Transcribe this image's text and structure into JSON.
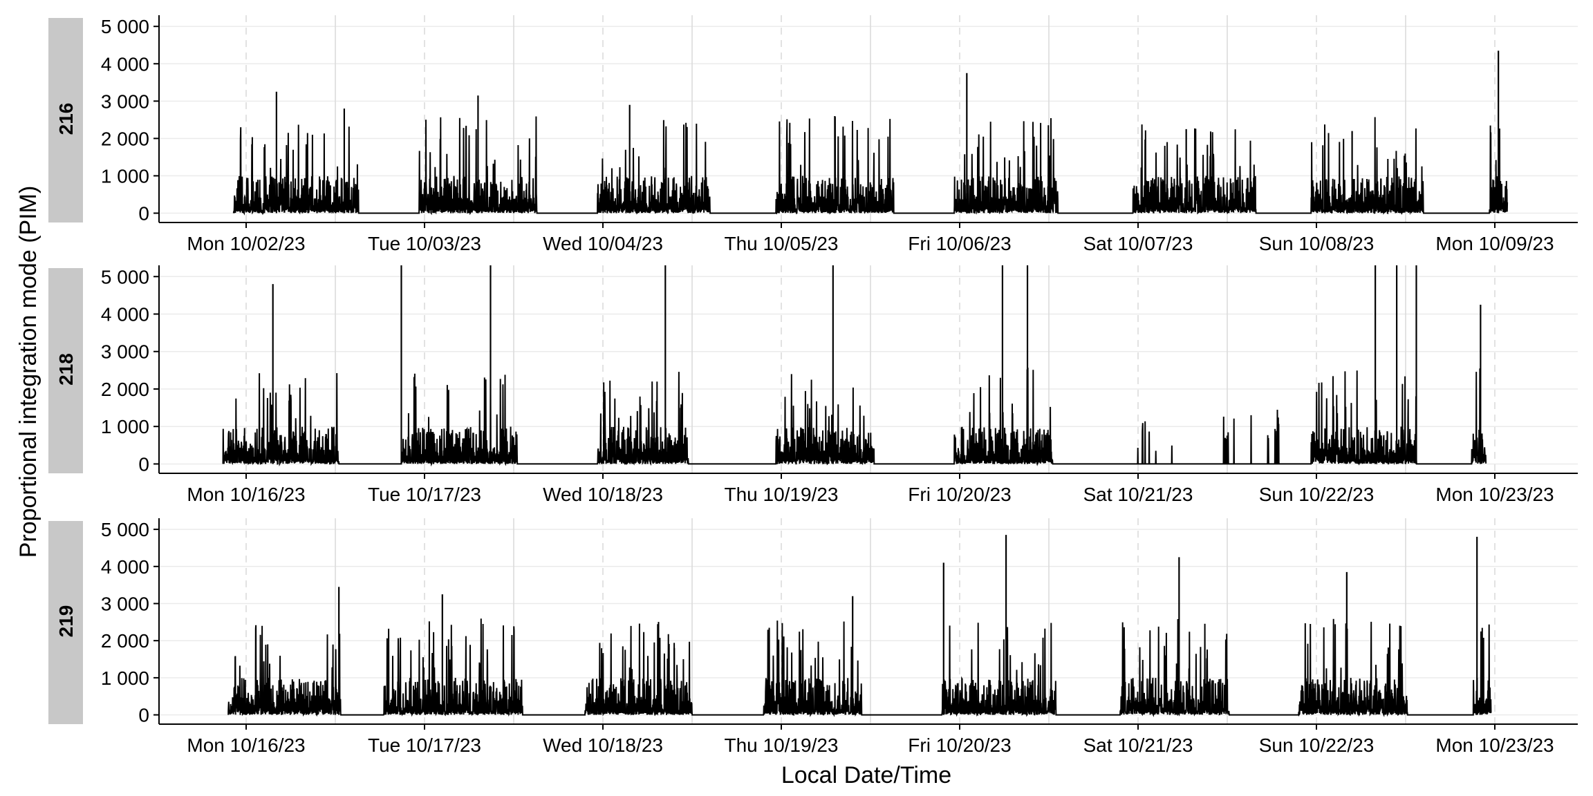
{
  "chart_data": {
    "type": "line",
    "ylabel": "Proportional integration mode (PIM)",
    "xlabel": "Local Date/Time",
    "ylim": [
      -250,
      5300
    ],
    "yticks": [
      0,
      1000,
      2000,
      3000,
      4000,
      5000
    ],
    "ytick_labels": [
      "0",
      "1 000",
      "2 000",
      "3 000",
      "4 000",
      "5 000"
    ],
    "grid": true,
    "colors": {
      "line": "#000000",
      "strip": "#c8c8c8",
      "grid": "#ebebeb",
      "day_line": "#d9d9d9"
    },
    "panels": [
      {
        "strip": "216",
        "x_tick_labels": [
          "Mon 10/02/23",
          "Tue 10/03/23",
          "Wed 10/04/23",
          "Thu 10/05/23",
          "Fri 10/06/23",
          "Sat 10/07/23",
          "Sun 10/08/23",
          "Mon 10/09/23"
        ],
        "active_periods": [
          [
            -0.07,
            0.63
          ],
          [
            0.97,
            1.63
          ],
          [
            1.97,
            2.6
          ],
          [
            2.97,
            3.63
          ],
          [
            3.97,
            4.55
          ],
          [
            4.97,
            5.66
          ],
          [
            5.97,
            6.6
          ],
          [
            6.97,
            7.07
          ]
        ],
        "peaks": [
          [
            0.17,
            3250
          ],
          [
            0.55,
            2800
          ],
          [
            1.3,
            3150
          ],
          [
            2.15,
            2900
          ],
          [
            3.3,
            2600
          ],
          [
            4.04,
            3750
          ],
          [
            5.27,
            2250
          ],
          [
            6.2,
            2200
          ],
          [
            7.02,
            4350
          ]
        ]
      },
      {
        "strip": "218",
        "x_tick_labels": [
          "Mon 10/16/23",
          "Tue 10/17/23",
          "Wed 10/18/23",
          "Thu 10/19/23",
          "Fri 10/20/23",
          "Sat 10/21/23",
          "Sun 10/22/23",
          "Mon 10/23/23"
        ],
        "active_periods": [
          [
            -0.13,
            0.52
          ],
          [
            0.87,
            1.52
          ],
          [
            1.97,
            2.48
          ],
          [
            2.97,
            3.52
          ],
          [
            3.97,
            4.52
          ],
          [
            5.97,
            6.56
          ],
          [
            6.87,
            6.95
          ]
        ],
        "sparse_periods": [
          [
            4.97,
            5.23
          ],
          [
            5.47,
            5.83
          ]
        ],
        "peaks": [
          [
            0.15,
            4800
          ],
          [
            0.87,
            5300
          ],
          [
            1.37,
            5300
          ],
          [
            2.35,
            5300
          ],
          [
            3.29,
            5300
          ],
          [
            4.24,
            5300
          ],
          [
            4.38,
            5300
          ],
          [
            6.33,
            5300
          ],
          [
            6.45,
            5300
          ],
          [
            6.56,
            5300
          ],
          [
            6.92,
            4250
          ]
        ]
      },
      {
        "strip": "219",
        "x_tick_labels": [
          "Mon 10/16/23",
          "Tue 10/17/23",
          "Wed 10/18/23",
          "Thu 10/19/23",
          "Fri 10/20/23",
          "Sat 10/21/23",
          "Sun 10/22/23",
          "Mon 10/23/23"
        ],
        "active_periods": [
          [
            -0.1,
            0.53
          ],
          [
            0.77,
            1.55
          ],
          [
            1.9,
            2.5
          ],
          [
            2.9,
            3.45
          ],
          [
            3.9,
            4.54
          ],
          [
            4.9,
            5.51
          ],
          [
            5.9,
            6.51
          ],
          [
            6.88,
            6.98
          ]
        ],
        "peaks": [
          [
            0.52,
            3450
          ],
          [
            1.1,
            3250
          ],
          [
            2.4,
            1800
          ],
          [
            3.4,
            3200
          ],
          [
            3.91,
            4100
          ],
          [
            4.26,
            4850
          ],
          [
            5.23,
            4250
          ],
          [
            6.17,
            3850
          ],
          [
            6.9,
            4800
          ]
        ]
      }
    ]
  }
}
